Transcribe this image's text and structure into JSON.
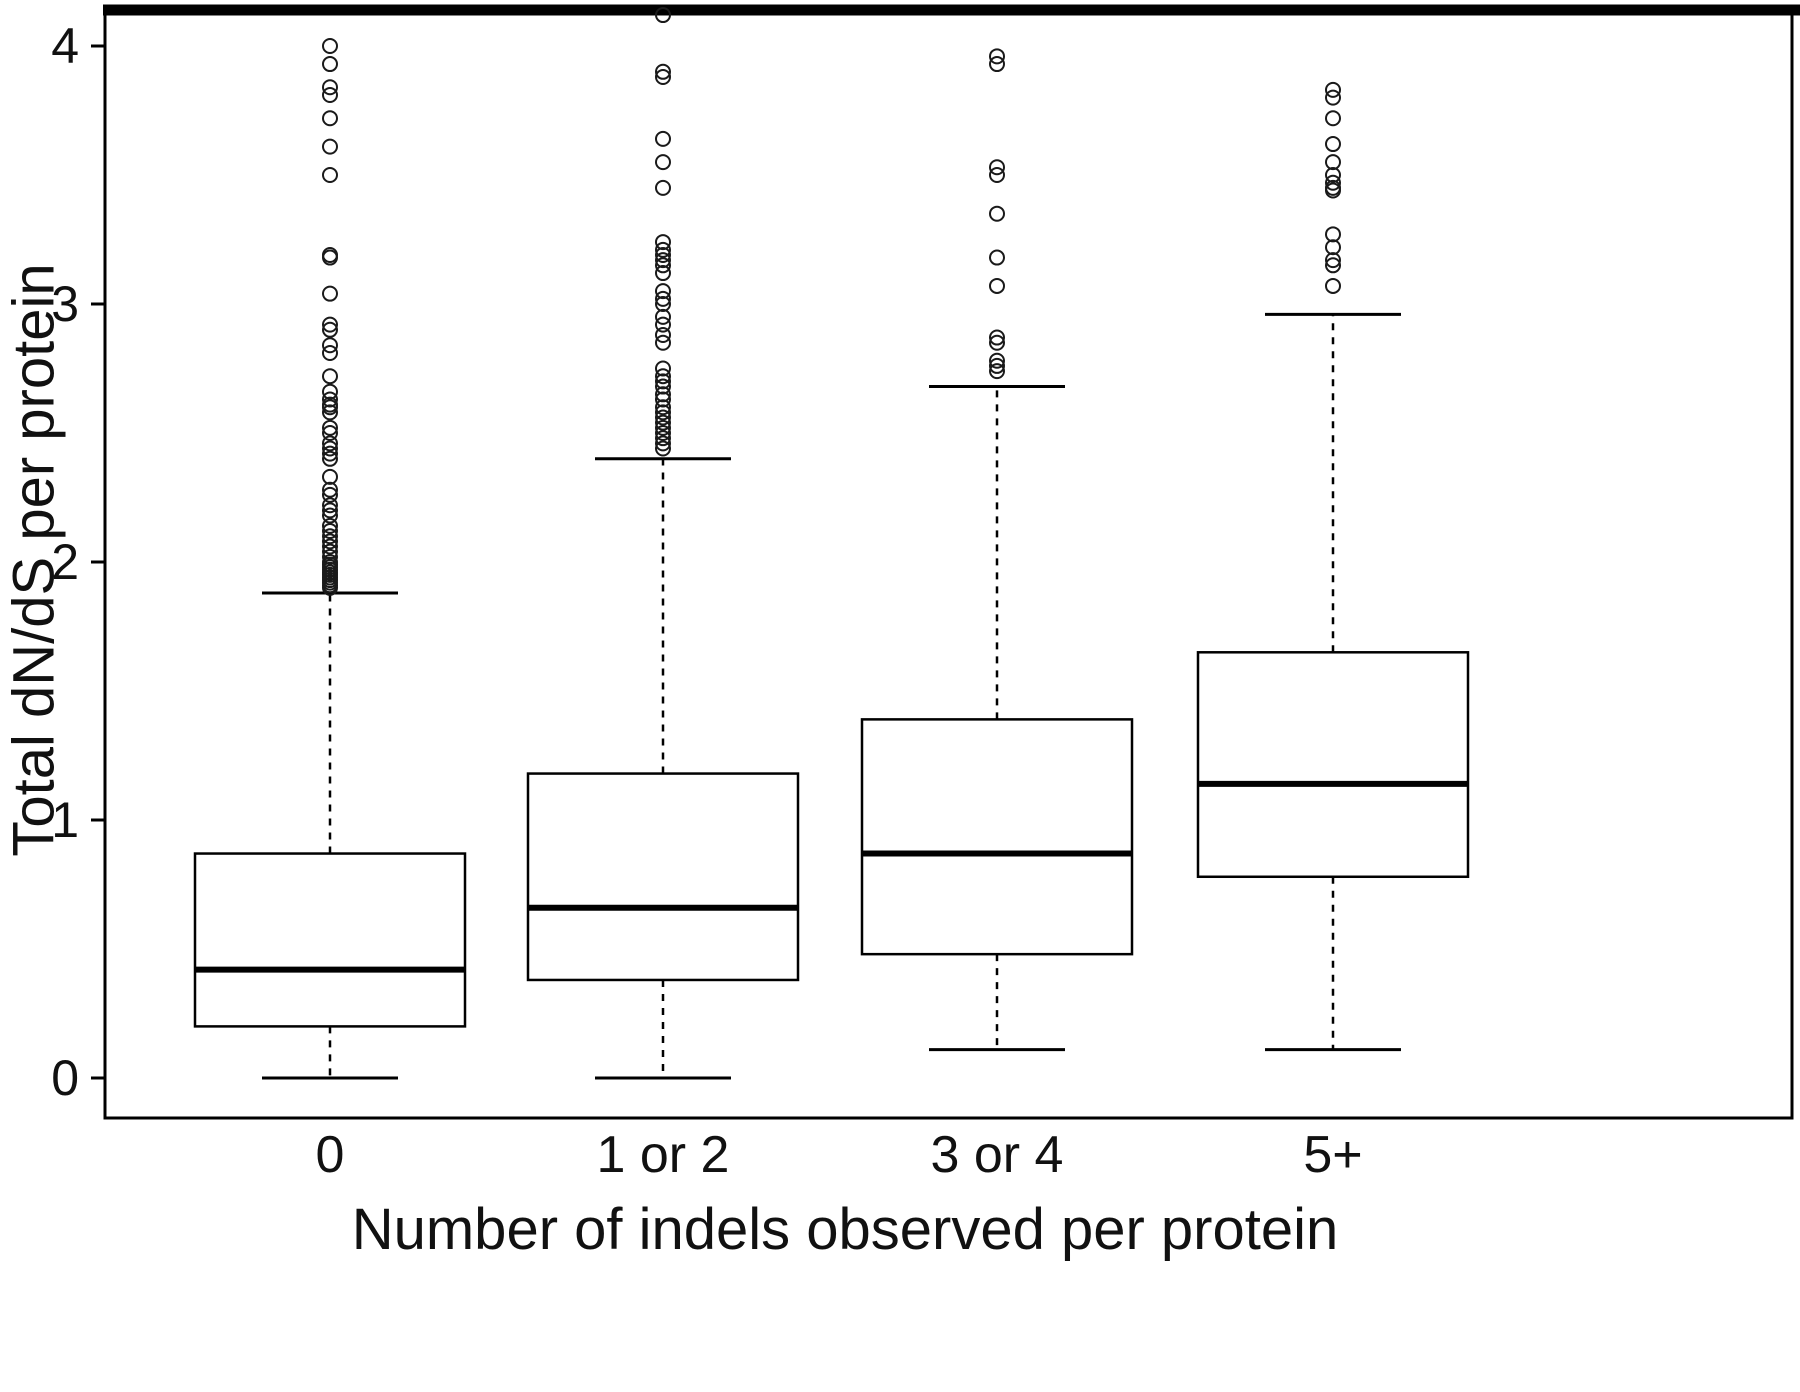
{
  "figure": {
    "xlabel": "Number of indels observed per protein",
    "ylabel": "Total dN/dS per protein"
  },
  "chart_data": {
    "type": "boxplot",
    "title": "",
    "xlabel": "Number of indels observed per protein",
    "ylabel": "Total dN/dS per protein",
    "categories": [
      "0",
      "1 or 2",
      "3 or 4",
      "5+"
    ],
    "ylim": [
      0,
      4
    ],
    "yticks": [
      0,
      1,
      2,
      3,
      4
    ],
    "grid": false,
    "legend": "none",
    "boxes": [
      {
        "category": "0",
        "whisker_low": 0.0,
        "q1": 0.2,
        "median": 0.42,
        "q3": 0.87,
        "whisker_high": 1.88,
        "outliers": [
          1.9,
          1.91,
          1.92,
          1.93,
          1.94,
          1.95,
          1.96,
          1.97,
          1.98,
          1.99,
          2.0,
          2.02,
          2.04,
          2.06,
          2.08,
          2.1,
          2.12,
          2.14,
          2.18,
          2.2,
          2.22,
          2.26,
          2.28,
          2.33,
          2.4,
          2.42,
          2.44,
          2.46,
          2.5,
          2.52,
          2.58,
          2.6,
          2.61,
          2.63,
          2.66,
          2.72,
          2.81,
          2.84,
          2.9,
          2.92,
          3.04,
          3.18,
          3.19,
          3.5,
          3.61,
          3.72,
          3.81,
          3.84,
          3.93,
          4.0
        ]
      },
      {
        "category": "1 or 2",
        "whisker_low": 0.0,
        "q1": 0.38,
        "median": 0.66,
        "q3": 1.18,
        "whisker_high": 2.4,
        "outliers": [
          2.44,
          2.46,
          2.48,
          2.5,
          2.52,
          2.54,
          2.56,
          2.58,
          2.6,
          2.63,
          2.65,
          2.68,
          2.7,
          2.72,
          2.75,
          2.85,
          2.88,
          2.92,
          2.95,
          3.0,
          3.02,
          3.05,
          3.12,
          3.15,
          3.17,
          3.19,
          3.21,
          3.24,
          3.45,
          3.55,
          3.64,
          3.88,
          3.9,
          4.12
        ]
      },
      {
        "category": "3 or 4",
        "whisker_low": 0.11,
        "q1": 0.48,
        "median": 0.87,
        "q3": 1.39,
        "whisker_high": 2.68,
        "outliers": [
          2.74,
          2.76,
          2.78,
          2.85,
          2.87,
          3.07,
          3.18,
          3.35,
          3.5,
          3.53,
          3.93,
          3.96
        ]
      },
      {
        "category": "5+",
        "whisker_low": 0.11,
        "q1": 0.78,
        "median": 1.14,
        "q3": 1.65,
        "whisker_high": 2.96,
        "outliers": [
          3.07,
          3.15,
          3.17,
          3.22,
          3.27,
          3.44,
          3.45,
          3.47,
          3.5,
          3.55,
          3.62,
          3.72,
          3.8,
          3.83
        ]
      }
    ]
  }
}
